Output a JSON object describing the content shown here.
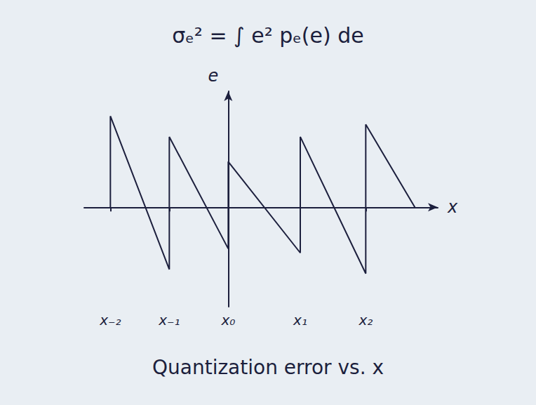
{
  "chart_data": {
    "type": "line",
    "title": "σₑ² = ∫ e² pₑ(e) de",
    "x_label": "x",
    "y_label": "e",
    "annotations": [
      "Quantization error vs. x"
    ],
    "x": [
      -1.8,
      -1.8,
      -0.9,
      -0.9,
      0,
      0,
      1.1,
      1.1,
      2.1,
      2.1,
      2.85
    ],
    "values": [
      0,
      1.1,
      -0.75,
      0.85,
      -0.5,
      0.55,
      -0.55,
      0.85,
      -0.8,
      1.0,
      0
    ],
    "color": "#1c1f3d",
    "xlim": [
      -2.2,
      3.2
    ],
    "xticks": [
      {
        "value": -1.8,
        "label": "x₋₂"
      },
      {
        "value": -0.9,
        "label": "x₋₁"
      },
      {
        "value": 0,
        "label": "x₀"
      },
      {
        "value": 1.1,
        "label": "x₁"
      },
      {
        "value": 2.1,
        "label": "x₂"
      }
    ],
    "ylim": [
      -1.2,
      1.4
    ],
    "tick_labels": "x",
    "grid": false
  }
}
